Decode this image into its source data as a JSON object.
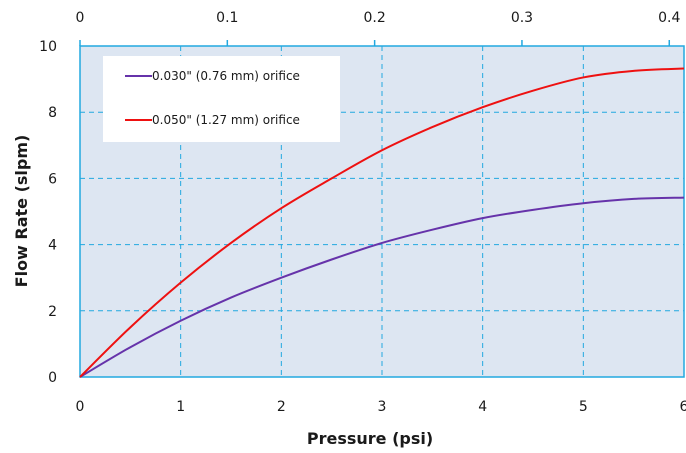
{
  "chart_data": {
    "type": "line",
    "title": "",
    "xlabel": "Pressure (psi)",
    "ylabel": "Flow Rate (slpm)",
    "xlim": [
      0,
      6
    ],
    "ylim": [
      0,
      10
    ],
    "x_ticks": [
      "0",
      "1",
      "2",
      "3",
      "4",
      "5",
      "6"
    ],
    "y_ticks": [
      "0",
      "2",
      "4",
      "6",
      "8",
      "10"
    ],
    "secondary_x_ticks": [
      "0",
      "0.1",
      "0.2",
      "0.3",
      "0.4"
    ],
    "secondary_x_values": [
      0,
      0.1,
      0.2,
      0.3,
      0.4
    ],
    "secondary_x_lim": [
      0,
      0.41
    ],
    "grid": true,
    "legend_position": "top-left",
    "series": [
      {
        "name": "0.030\" (0.76 mm) orifice",
        "color": "#6633aa",
        "x": [
          0,
          0.5,
          1,
          1.5,
          2,
          2.5,
          3,
          3.5,
          4,
          4.5,
          5,
          5.5,
          6
        ],
        "y": [
          0,
          0.9,
          1.7,
          2.4,
          3.0,
          3.55,
          4.05,
          4.45,
          4.8,
          5.05,
          5.25,
          5.38,
          5.42
        ]
      },
      {
        "name": "0.050\" (1.27 mm) orifice",
        "color": "#ee1111",
        "x": [
          0,
          0.5,
          1,
          1.5,
          2,
          2.5,
          3,
          3.5,
          4,
          4.5,
          5,
          5.5,
          6
        ],
        "y": [
          0,
          1.5,
          2.85,
          4.05,
          5.1,
          6.0,
          6.85,
          7.55,
          8.15,
          8.65,
          9.05,
          9.25,
          9.32
        ]
      }
    ],
    "colors": {
      "plot_background": "#dde6f2",
      "grid": "#22a8e0",
      "frame": "#22a8e0"
    }
  }
}
